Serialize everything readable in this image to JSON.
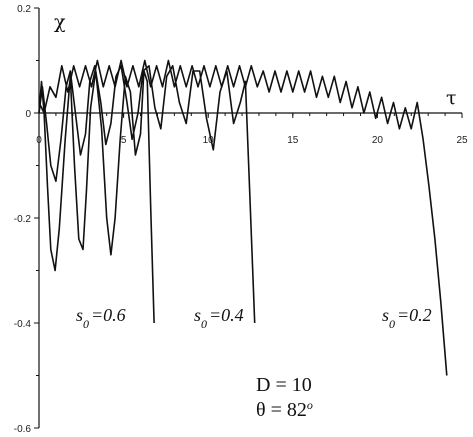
{
  "chart_data": {
    "type": "line",
    "xlabel": "τ",
    "ylabel": "χ",
    "xlim": [
      0,
      25
    ],
    "ylim": [
      -0.6,
      0.2
    ],
    "x_ticks": [
      "0",
      "5",
      "10",
      "15",
      "20",
      "25"
    ],
    "y_ticks": [
      "0.2",
      "0",
      "-0.2",
      "-0.4",
      "-0.6"
    ],
    "grid": false,
    "series": [
      {
        "name": "s0=0.6",
        "color": "#111111",
        "x": [
          0.0,
          0.15,
          0.3,
          0.5,
          0.7,
          0.95,
          1.2,
          1.55,
          1.85,
          2.1,
          2.35,
          2.6,
          2.8,
          3.05,
          3.35,
          3.7,
          4.0,
          4.25,
          4.5,
          4.8,
          5.1,
          5.4,
          5.7,
          6.0,
          6.2,
          6.4,
          6.6,
          6.8
        ],
        "y": [
          0.0,
          0.06,
          0.0,
          -0.14,
          -0.26,
          -0.3,
          -0.22,
          -0.05,
          0.07,
          -0.1,
          -0.24,
          -0.26,
          -0.15,
          0.01,
          0.08,
          -0.03,
          -0.2,
          -0.27,
          -0.2,
          -0.05,
          0.07,
          0.04,
          -0.08,
          -0.04,
          0.08,
          0.06,
          -0.18,
          -0.4
        ],
        "labels": {
          "s": "s",
          "sub": "0",
          "eq": "=0.6"
        }
      },
      {
        "name": "s0=0.4",
        "color": "#111111",
        "x": [
          0.0,
          0.2,
          0.45,
          0.7,
          1.0,
          1.3,
          1.6,
          1.85,
          2.15,
          2.45,
          2.75,
          3.0,
          3.3,
          3.65,
          3.95,
          4.25,
          4.55,
          4.85,
          5.2,
          5.5,
          5.85,
          6.15,
          6.5,
          6.85,
          7.2,
          7.55,
          7.9,
          8.3,
          8.7,
          9.1,
          9.5,
          9.9,
          10.3,
          10.7,
          11.1,
          11.5,
          11.9,
          12.2,
          12.45,
          12.75
        ],
        "y": [
          0.0,
          0.05,
          -0.02,
          -0.1,
          -0.13,
          -0.05,
          0.05,
          0.08,
          0.0,
          -0.08,
          -0.04,
          0.06,
          0.09,
          0.02,
          -0.06,
          -0.02,
          0.07,
          0.09,
          0.02,
          -0.05,
          0.0,
          0.08,
          0.09,
          0.01,
          -0.03,
          0.07,
          0.09,
          0.02,
          -0.02,
          0.08,
          0.08,
          -0.01,
          -0.07,
          0.04,
          0.08,
          -0.02,
          0.02,
          0.06,
          -0.15,
          -0.4
        ],
        "labels": {
          "s": "s",
          "sub": "0",
          "eq": "=0.4"
        }
      },
      {
        "name": "s0=0.2",
        "color": "#111111",
        "x": [
          0.0,
          0.3,
          0.65,
          1.0,
          1.35,
          1.7,
          2.05,
          2.4,
          2.75,
          3.1,
          3.45,
          3.8,
          4.15,
          4.5,
          4.85,
          5.2,
          5.55,
          5.9,
          6.25,
          6.6,
          6.95,
          7.3,
          7.65,
          8.0,
          8.35,
          8.7,
          9.05,
          9.4,
          9.75,
          10.1,
          10.45,
          10.8,
          11.15,
          11.5,
          11.85,
          12.2,
          12.55,
          12.9,
          13.25,
          13.6,
          13.95,
          14.3,
          14.65,
          15.0,
          15.35,
          15.7,
          16.05,
          16.4,
          16.75,
          17.1,
          17.45,
          17.8,
          18.15,
          18.5,
          18.85,
          19.2,
          19.55,
          19.9,
          20.25,
          20.6,
          20.95,
          21.3,
          21.65,
          22.0,
          22.35,
          22.7,
          23.05,
          23.4,
          23.75,
          24.1
        ],
        "y": [
          0.02,
          0.0,
          0.05,
          0.03,
          0.09,
          0.04,
          0.09,
          0.05,
          0.09,
          0.05,
          0.1,
          0.05,
          0.09,
          0.05,
          0.1,
          0.05,
          0.09,
          0.05,
          0.1,
          0.05,
          0.09,
          0.05,
          0.1,
          0.05,
          0.09,
          0.05,
          0.09,
          0.05,
          0.09,
          0.05,
          0.09,
          0.05,
          0.09,
          0.05,
          0.09,
          0.05,
          0.09,
          0.05,
          0.08,
          0.04,
          0.08,
          0.04,
          0.08,
          0.04,
          0.08,
          0.04,
          0.08,
          0.03,
          0.07,
          0.03,
          0.07,
          0.02,
          0.06,
          0.01,
          0.05,
          0.0,
          0.04,
          -0.01,
          0.03,
          -0.02,
          0.02,
          -0.03,
          0.01,
          -0.03,
          0.02,
          -0.05,
          -0.14,
          -0.24,
          -0.36,
          -0.5
        ],
        "labels": {
          "s": "s",
          "sub": "0",
          "eq": "=0.2"
        }
      }
    ],
    "annotations": {
      "d_param": "D = 10",
      "theta_param": "θ = 82",
      "theta_sup": "o"
    }
  }
}
